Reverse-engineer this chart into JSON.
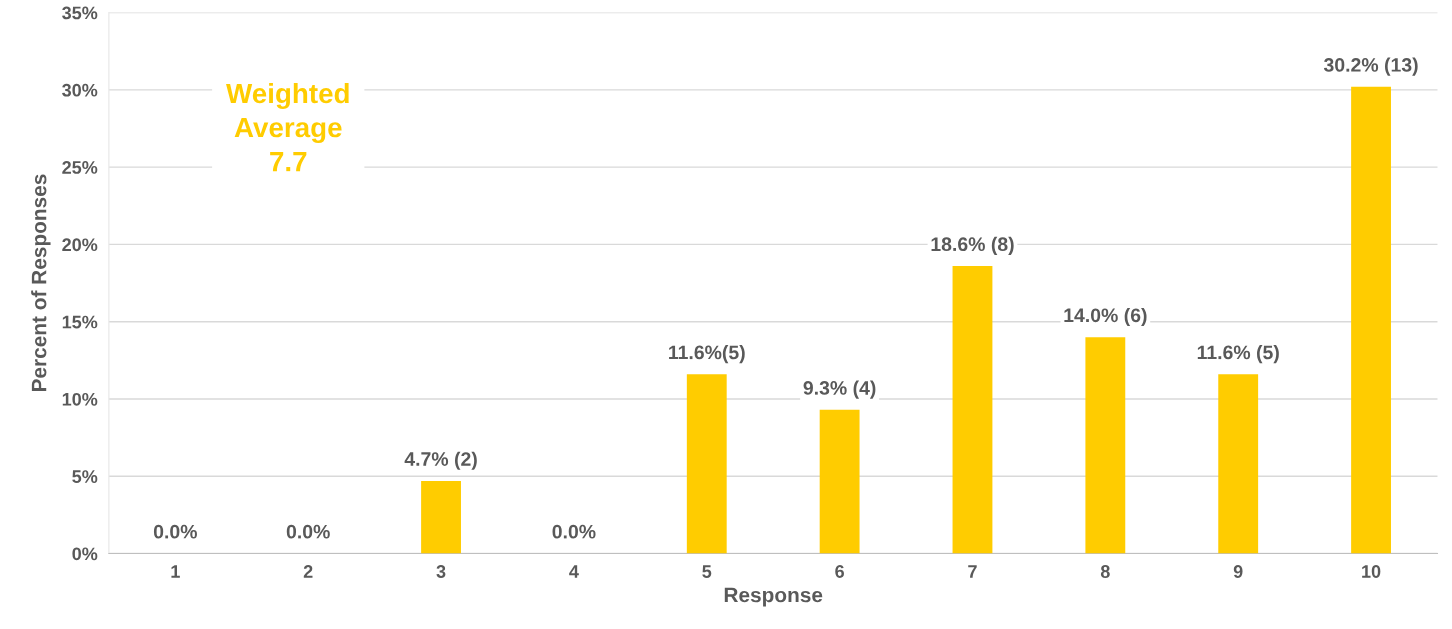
{
  "chart_data": {
    "type": "bar",
    "xlabel": "Response",
    "ylabel": "Percent of Responses",
    "categories": [
      "1",
      "2",
      "3",
      "4",
      "5",
      "6",
      "7",
      "8",
      "9",
      "10"
    ],
    "values": [
      0,
      0,
      4.7,
      0,
      11.6,
      9.3,
      18.6,
      14.0,
      11.6,
      30.2
    ],
    "value_labels": [
      "0.0%",
      "0.0%",
      "4.7% (2)",
      "0.0%",
      "11.6%(5)",
      "9.3% (4)",
      "18.6% (8)",
      "14.0% (6)",
      "11.6% (5)",
      "30.2% (13)"
    ],
    "color": "#ffcc00",
    "ylim": [
      0,
      35
    ],
    "yticks": [
      {
        "value": 0,
        "label": "0%"
      },
      {
        "value": 5,
        "label": "5%"
      },
      {
        "value": 10,
        "label": "10%"
      },
      {
        "value": 15,
        "label": "15%"
      },
      {
        "value": 20,
        "label": "20%"
      },
      {
        "value": 25,
        "label": "25%"
      },
      {
        "value": 30,
        "label": "30%"
      },
      {
        "value": 35,
        "label": "35%"
      }
    ],
    "grid": "y",
    "legend": false,
    "annotations": [
      "Weighted\nAverage\n7.7"
    ]
  }
}
